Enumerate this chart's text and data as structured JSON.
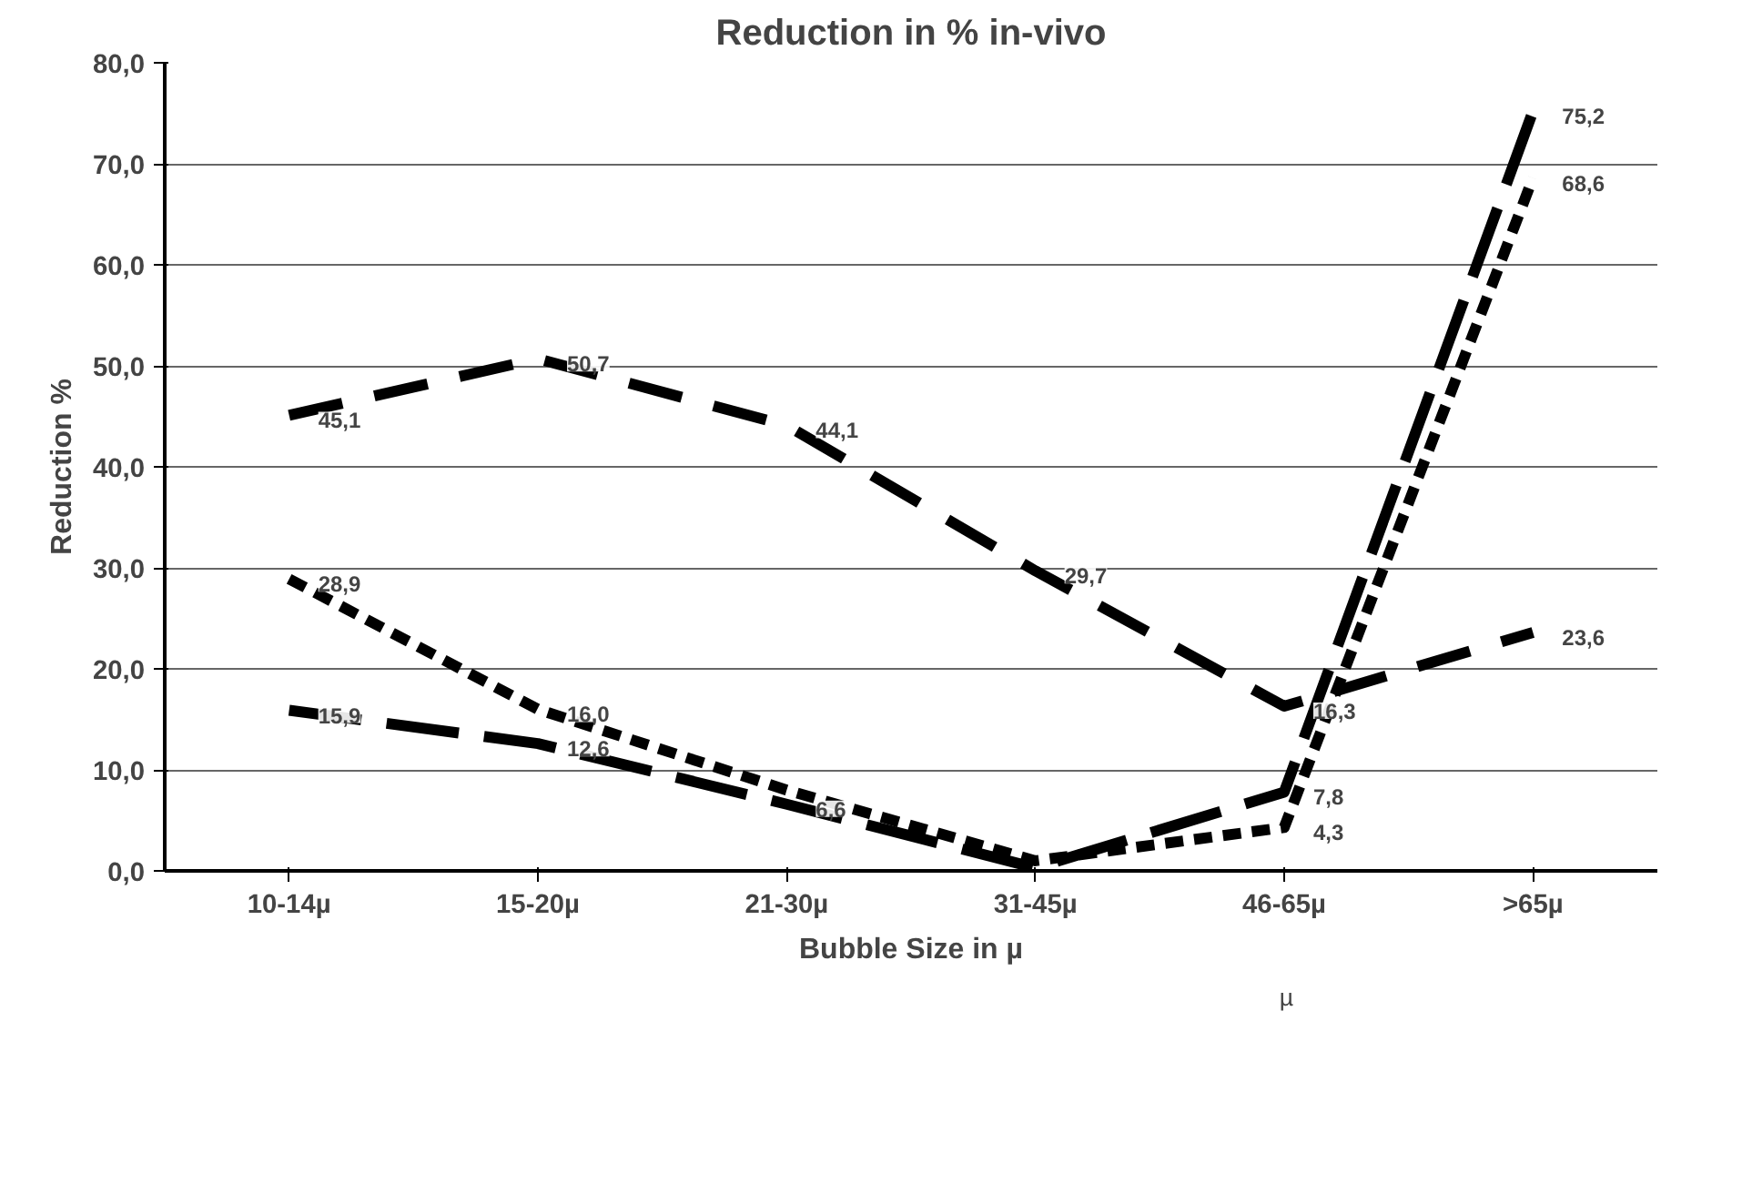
{
  "chart_data": {
    "type": "line",
    "title": "Reduction in % in-vivo",
    "xlabel": "Bubble Size in µ",
    "ylabel": "Reduction %",
    "categories": [
      "10-14µ",
      "15-20µ",
      "21-30µ",
      "31-45µ",
      "46-65µ",
      ">65µ"
    ],
    "series": [
      {
        "color": "#000000",
        "line_style": "dashed",
        "values": [
          28.9,
          16.0,
          8.0,
          1.0,
          4.3,
          68.6
        ],
        "value_labels": [
          "28,9",
          "16,0",
          null,
          null,
          "4,3",
          "68,6"
        ]
      },
      {
        "color": "#000000",
        "line_style": "dashed",
        "values": [
          45.1,
          50.7,
          44.1,
          29.7,
          16.3,
          23.6
        ],
        "value_labels": [
          "45,1",
          "50,7",
          "44,1",
          "29,7",
          "16,3",
          "23,6"
        ]
      },
      {
        "color": "#000000",
        "line_style": "dashed",
        "values": [
          15.9,
          12.6,
          6.6,
          0.3,
          7.8,
          75.2
        ],
        "value_labels": [
          "15,9",
          "12,6",
          "6,6",
          null,
          "7,8",
          "75,2"
        ]
      }
    ],
    "ylim": [
      0,
      80
    ],
    "yticks": [
      {
        "value": 0,
        "label": "0,0"
      },
      {
        "value": 10,
        "label": "10,0"
      },
      {
        "value": 20,
        "label": "20,0"
      },
      {
        "value": 30,
        "label": "30,0"
      },
      {
        "value": 40,
        "label": "40,0"
      },
      {
        "value": 50,
        "label": "50,0"
      },
      {
        "value": 60,
        "label": "60,0"
      },
      {
        "value": 70,
        "label": "70,0"
      },
      {
        "value": 80,
        "label": "80,0"
      }
    ],
    "grid": "y",
    "marker": "none",
    "annotations": [
      "µ"
    ]
  }
}
